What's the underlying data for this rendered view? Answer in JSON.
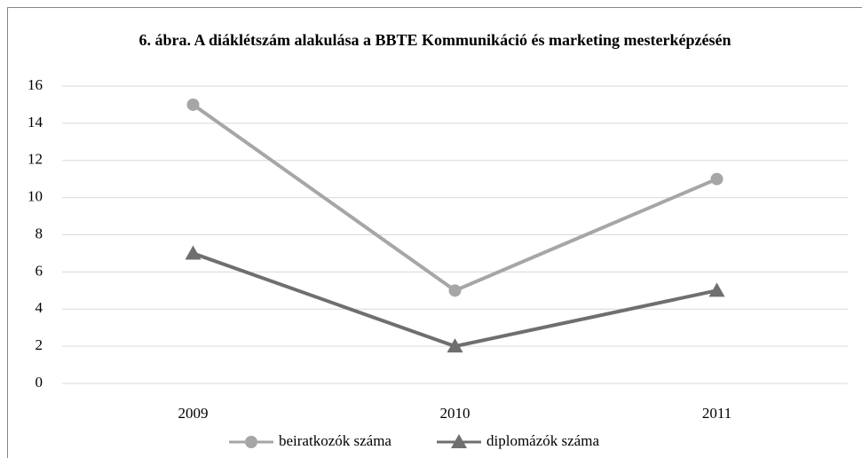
{
  "chart_data": {
    "type": "line",
    "title": "6. ábra. A diáklétszám alakulása a BBTE Kommunikáció és marketing mesterképzésén",
    "categories": [
      "2009",
      "2010",
      "2011"
    ],
    "series": [
      {
        "name": "beiratkozók száma",
        "color": "#a6a6a6",
        "marker": "circle",
        "values": [
          15,
          5,
          11
        ]
      },
      {
        "name": "diplomázók száma",
        "color": "#6f6f6f",
        "marker": "triangle",
        "values": [
          7,
          2,
          5
        ]
      }
    ],
    "ylim": [
      0,
      16
    ],
    "yticks": [
      0,
      2,
      4,
      6,
      8,
      10,
      12,
      14,
      16
    ],
    "grid": true,
    "legend": "bottom"
  }
}
